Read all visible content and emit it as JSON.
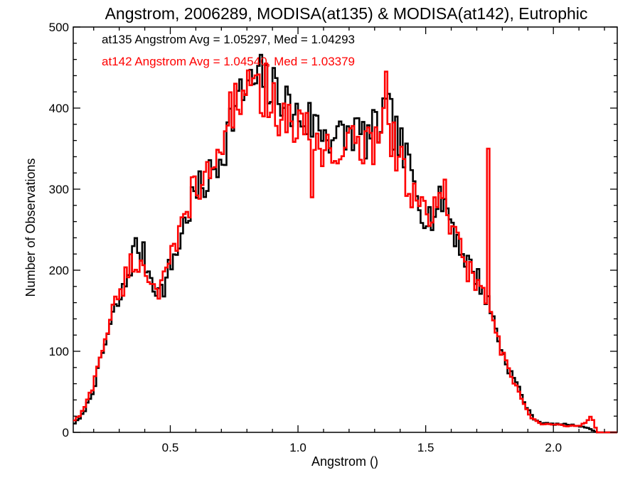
{
  "chart_data": {
    "type": "histogram",
    "title": "Angstrom, 2006289, MODISA(at135) & MODISA(at142), Eutrophic",
    "xlabel": "Angstrom ()",
    "ylabel": "Number of Observations",
    "xlim": [
      0.12,
      2.25
    ],
    "ylim": [
      0,
      500
    ],
    "x_ticks": [
      0.5,
      1.0,
      1.5,
      2.0
    ],
    "x_tick_labels": [
      "0.5",
      "1.0",
      "1.5",
      "2.0"
    ],
    "y_ticks": [
      0,
      100,
      200,
      300,
      400,
      500
    ],
    "y_tick_labels": [
      "0",
      "100",
      "200",
      "300",
      "400",
      "500"
    ],
    "bin_width": 0.01,
    "legend": [
      {
        "text": "at135 Angstrom Avg = 1.05297, Med = 1.04293",
        "color": "#000000"
      },
      {
        "text": "at142 Angstrom Avg = 1.04540, Med = 1.03379",
        "color": "#ff0000"
      }
    ],
    "series": [
      {
        "color": "#000000",
        "anchors": [
          [
            0.12,
            10
          ],
          [
            0.15,
            18
          ],
          [
            0.18,
            38
          ],
          [
            0.2,
            55
          ],
          [
            0.22,
            80
          ],
          [
            0.25,
            115
          ],
          [
            0.28,
            148
          ],
          [
            0.31,
            168
          ],
          [
            0.34,
            200
          ],
          [
            0.36,
            228
          ],
          [
            0.38,
            226
          ],
          [
            0.4,
            215
          ],
          [
            0.42,
            195
          ],
          [
            0.44,
            182
          ],
          [
            0.46,
            172
          ],
          [
            0.48,
            182
          ],
          [
            0.5,
            205
          ],
          [
            0.53,
            228
          ],
          [
            0.56,
            262
          ],
          [
            0.59,
            290
          ],
          [
            0.62,
            300
          ],
          [
            0.65,
            312
          ],
          [
            0.68,
            328
          ],
          [
            0.71,
            352
          ],
          [
            0.74,
            390
          ],
          [
            0.77,
            410
          ],
          [
            0.8,
            425
          ],
          [
            0.83,
            430
          ],
          [
            0.86,
            440
          ],
          [
            0.89,
            420
          ],
          [
            0.92,
            425
          ],
          [
            0.95,
            410
          ],
          [
            0.98,
            392
          ],
          [
            1.01,
            388
          ],
          [
            1.04,
            385
          ],
          [
            1.07,
            380
          ],
          [
            1.1,
            372
          ],
          [
            1.13,
            368
          ],
          [
            1.16,
            362
          ],
          [
            1.19,
            365
          ],
          [
            1.22,
            375
          ],
          [
            1.25,
            362
          ],
          [
            1.28,
            365
          ],
          [
            1.31,
            372
          ],
          [
            1.34,
            395
          ],
          [
            1.37,
            382
          ],
          [
            1.4,
            352
          ],
          [
            1.43,
            330
          ],
          [
            1.46,
            302
          ],
          [
            1.49,
            275
          ],
          [
            1.52,
            265
          ],
          [
            1.55,
            278
          ],
          [
            1.57,
            290
          ],
          [
            1.6,
            262
          ],
          [
            1.63,
            232
          ],
          [
            1.66,
            212
          ],
          [
            1.69,
            198
          ],
          [
            1.72,
            180
          ],
          [
            1.75,
            155
          ],
          [
            1.77,
            135
          ],
          [
            1.8,
            98
          ],
          [
            1.83,
            75
          ],
          [
            1.86,
            58
          ],
          [
            1.88,
            42
          ],
          [
            1.9,
            28
          ],
          [
            1.92,
            18
          ],
          [
            1.95,
            12
          ],
          [
            2.0,
            10
          ],
          [
            2.05,
            10
          ],
          [
            2.1,
            8
          ],
          [
            2.13,
            6
          ],
          [
            2.15,
            3
          ],
          [
            2.17,
            0
          ],
          [
            2.25,
            0
          ]
        ],
        "spikes": []
      },
      {
        "color": "#ff0000",
        "anchors": [
          [
            0.12,
            14
          ],
          [
            0.15,
            22
          ],
          [
            0.18,
            42
          ],
          [
            0.2,
            60
          ],
          [
            0.22,
            88
          ],
          [
            0.25,
            122
          ],
          [
            0.28,
            155
          ],
          [
            0.31,
            178
          ],
          [
            0.34,
            205
          ],
          [
            0.36,
            212
          ],
          [
            0.38,
            205
          ],
          [
            0.4,
            208
          ],
          [
            0.42,
            185
          ],
          [
            0.44,
            185
          ],
          [
            0.46,
            175
          ],
          [
            0.48,
            188
          ],
          [
            0.5,
            210
          ],
          [
            0.53,
            235
          ],
          [
            0.56,
            270
          ],
          [
            0.59,
            302
          ],
          [
            0.62,
            292
          ],
          [
            0.65,
            320
          ],
          [
            0.68,
            338
          ],
          [
            0.71,
            365
          ],
          [
            0.74,
            398
          ],
          [
            0.77,
            415
          ],
          [
            0.8,
            420
          ],
          [
            0.83,
            412
          ],
          [
            0.86,
            418
          ],
          [
            0.89,
            408
          ],
          [
            0.92,
            395
          ],
          [
            0.95,
            388
          ],
          [
            0.98,
            382
          ],
          [
            1.01,
            372
          ],
          [
            1.04,
            365
          ],
          [
            1.07,
            360
          ],
          [
            1.1,
            348
          ],
          [
            1.13,
            355
          ],
          [
            1.16,
            340
          ],
          [
            1.19,
            352
          ],
          [
            1.22,
            358
          ],
          [
            1.25,
            350
          ],
          [
            1.28,
            355
          ],
          [
            1.31,
            362
          ],
          [
            1.34,
            400
          ],
          [
            1.37,
            362
          ],
          [
            1.4,
            332
          ],
          [
            1.43,
            312
          ],
          [
            1.46,
            288
          ],
          [
            1.49,
            270
          ],
          [
            1.52,
            258
          ],
          [
            1.55,
            290
          ],
          [
            1.57,
            300
          ],
          [
            1.6,
            250
          ],
          [
            1.63,
            228
          ],
          [
            1.66,
            205
          ],
          [
            1.69,
            190
          ],
          [
            1.72,
            172
          ],
          [
            1.75,
            148
          ],
          [
            1.77,
            130
          ],
          [
            1.8,
            95
          ],
          [
            1.83,
            72
          ],
          [
            1.86,
            52
          ],
          [
            1.88,
            38
          ],
          [
            1.9,
            25
          ],
          [
            1.92,
            16
          ],
          [
            1.95,
            10
          ],
          [
            2.0,
            10
          ],
          [
            2.05,
            8
          ],
          [
            2.1,
            8
          ],
          [
            2.13,
            12
          ],
          [
            2.15,
            22
          ],
          [
            2.17,
            0
          ],
          [
            2.25,
            0
          ]
        ],
        "spikes": [
          [
            1.745,
            350
          ],
          [
            1.345,
            445
          ],
          [
            1.06,
            290
          ],
          [
            0.88,
            455
          ]
        ]
      }
    ]
  }
}
